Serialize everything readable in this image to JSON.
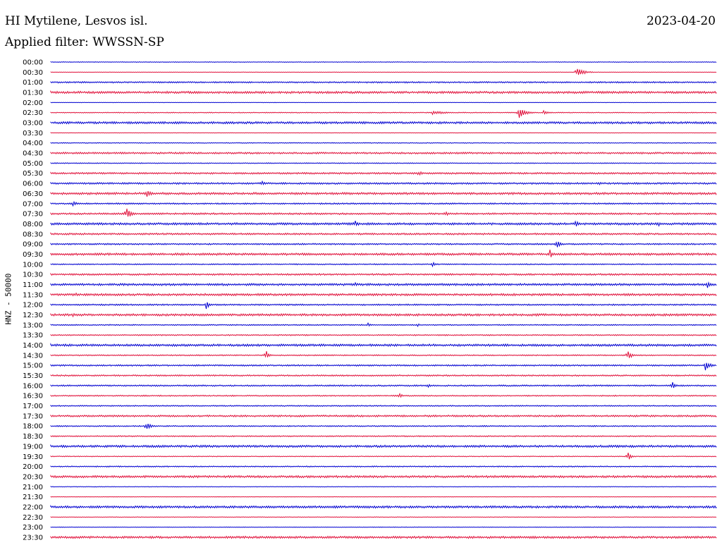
{
  "header": {
    "station": "HI Mytilene, Lesvos isl.",
    "filter": "Applied filter: WWSSN-SP",
    "date": "2023-04-20"
  },
  "chart_data": {
    "type": "line",
    "title": "HI Mytilene, Lesvos isl.",
    "subtitle": "Applied filter: WWSSN-SP",
    "date": "2023-04-20",
    "ylabel": "HNZ - 50000",
    "xlabel": "",
    "colors": [
      "#0000d0",
      "#e0103a"
    ],
    "rows": [
      "00:00",
      "00:30",
      "01:00",
      "01:30",
      "02:00",
      "02:30",
      "03:00",
      "03:30",
      "04:00",
      "04:30",
      "05:00",
      "05:30",
      "06:00",
      "06:30",
      "07:00",
      "07:30",
      "08:00",
      "08:30",
      "09:00",
      "09:30",
      "10:00",
      "10:30",
      "11:00",
      "11:30",
      "12:00",
      "12:30",
      "13:00",
      "13:30",
      "14:00",
      "14:30",
      "15:00",
      "15:30",
      "16:00",
      "16:30",
      "17:00",
      "17:30",
      "18:00",
      "18:30",
      "19:00",
      "19:30",
      "20:00",
      "20:30",
      "21:00",
      "21:30",
      "22:00",
      "22:30",
      "23:00",
      "23:30"
    ],
    "row_minutes": 30,
    "noise": [
      0.4,
      0.3,
      1.0,
      1.5,
      0.3,
      0.6,
      1.5,
      0.3,
      0.6,
      1.2,
      0.6,
      1.2,
      1.2,
      1.5,
      1.0,
      1.2,
      1.5,
      1.2,
      1.0,
      1.5,
      0.8,
      1.2,
      1.5,
      1.5,
      1.0,
      1.5,
      0.8,
      0.8,
      1.5,
      0.8,
      1.0,
      1.0,
      1.0,
      0.8,
      0.8,
      1.2,
      0.8,
      0.8,
      1.5,
      0.6,
      0.8,
      1.5,
      0.4,
      0.3,
      1.5,
      0.4,
      0.4,
      1.5
    ],
    "events": [
      {
        "row": 1,
        "minute": 23.7,
        "amplitude": 8,
        "duration": 0.8
      },
      {
        "row": 3,
        "minute": 1.2,
        "amplitude": 2,
        "duration": 0.5
      },
      {
        "row": 5,
        "minute": 17.2,
        "amplitude": 3,
        "duration": 1.5
      },
      {
        "row": 5,
        "minute": 21.1,
        "amplitude": 8,
        "duration": 0.8
      },
      {
        "row": 5,
        "minute": 22.2,
        "amplitude": 3,
        "duration": 0.8
      },
      {
        "row": 11,
        "minute": 16.6,
        "amplitude": 6,
        "duration": 0.3
      },
      {
        "row": 12,
        "minute": 9.5,
        "amplitude": 5,
        "duration": 0.4
      },
      {
        "row": 12,
        "minute": 24.7,
        "amplitude": 6,
        "duration": 0.2
      },
      {
        "row": 13,
        "minute": 4.3,
        "amplitude": 7,
        "duration": 0.5
      },
      {
        "row": 14,
        "minute": 1.0,
        "amplitude": 4,
        "duration": 0.5
      },
      {
        "row": 15,
        "minute": 3.4,
        "amplitude": 9,
        "duration": 0.6
      },
      {
        "row": 15,
        "minute": 17.8,
        "amplitude": 5,
        "duration": 0.3
      },
      {
        "row": 16,
        "minute": 13.7,
        "amplitude": 6,
        "duration": 0.4
      },
      {
        "row": 16,
        "minute": 23.6,
        "amplitude": 6,
        "duration": 0.5
      },
      {
        "row": 16,
        "minute": 27.4,
        "amplitude": 4,
        "duration": 0.3
      },
      {
        "row": 18,
        "minute": 22.8,
        "amplitude": 8,
        "duration": 0.4
      },
      {
        "row": 19,
        "minute": 22.5,
        "amplitude": 7,
        "duration": 0.3
      },
      {
        "row": 20,
        "minute": 17.2,
        "amplitude": 5,
        "duration": 0.3
      },
      {
        "row": 22,
        "minute": 13.7,
        "amplitude": 4,
        "duration": 0.2
      },
      {
        "row": 22,
        "minute": 29.6,
        "amplitude": 6,
        "duration": 0.3
      },
      {
        "row": 23,
        "minute": 1.1,
        "amplitude": 4,
        "duration": 0.4
      },
      {
        "row": 24,
        "minute": 7.0,
        "amplitude": 7,
        "duration": 0.4
      },
      {
        "row": 25,
        "minute": 1.0,
        "amplitude": 3,
        "duration": 0.4
      },
      {
        "row": 25,
        "minute": 4.2,
        "amplitude": 3,
        "duration": 0.3
      },
      {
        "row": 26,
        "minute": 14.3,
        "amplitude": 3,
        "duration": 0.3
      },
      {
        "row": 26,
        "minute": 16.5,
        "amplitude": 4,
        "duration": 0.3
      },
      {
        "row": 29,
        "minute": 9.7,
        "amplitude": 7,
        "duration": 0.4
      },
      {
        "row": 29,
        "minute": 26.0,
        "amplitude": 7,
        "duration": 0.5
      },
      {
        "row": 30,
        "minute": 29.5,
        "amplitude": 9,
        "duration": 0.5
      },
      {
        "row": 32,
        "minute": 17.0,
        "amplitude": 3,
        "duration": 0.4
      },
      {
        "row": 32,
        "minute": 28.0,
        "amplitude": 7,
        "duration": 0.4
      },
      {
        "row": 33,
        "minute": 15.7,
        "amplitude": 5,
        "duration": 0.3
      },
      {
        "row": 36,
        "minute": 4.3,
        "amplitude": 7,
        "duration": 0.5
      },
      {
        "row": 39,
        "minute": 26.0,
        "amplitude": 7,
        "duration": 0.4
      }
    ]
  }
}
